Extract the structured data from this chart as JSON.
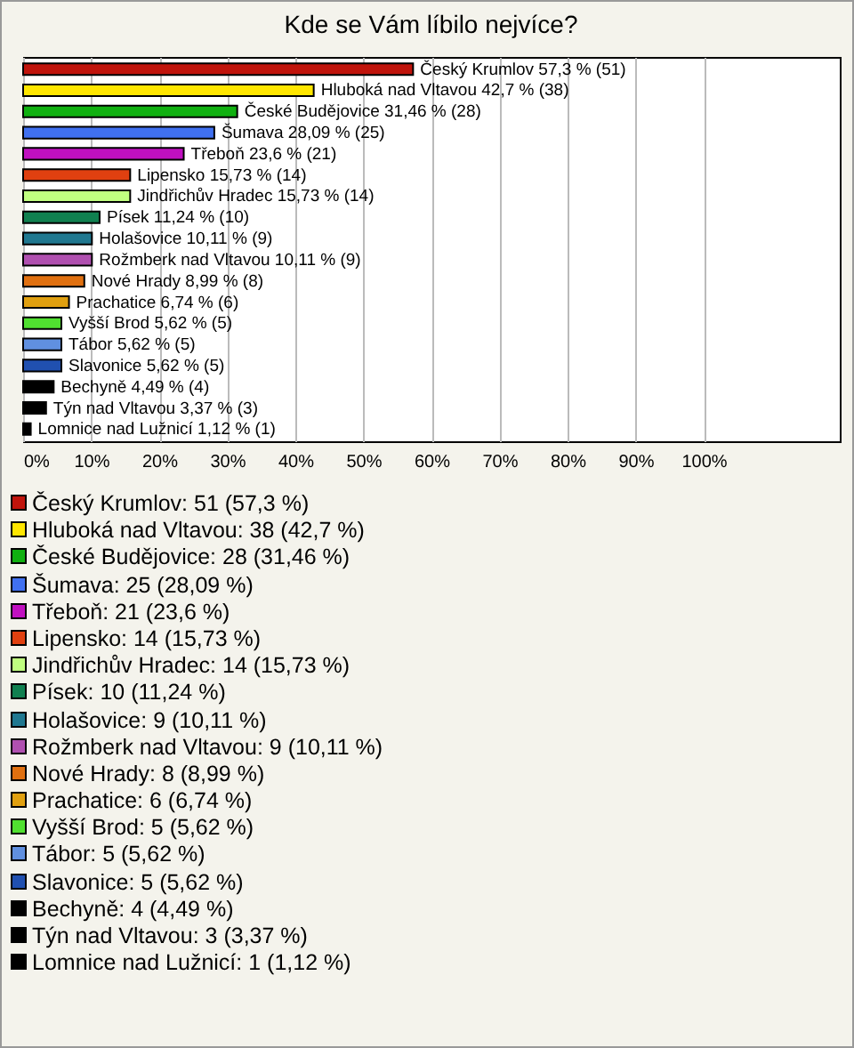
{
  "chart_data": {
    "type": "bar",
    "orientation": "horizontal",
    "title": "Kde se Vám líbilo nejvíce?",
    "categories": [
      "Český Krumlov",
      "Hluboká nad Vltavou",
      "České Budějovice",
      "Šumava",
      "Třeboň",
      "Lipensko",
      "Jindřichův Hradec",
      "Písek",
      "Holašovice",
      "Rožmberk nad Vltavou",
      "Nové Hrady",
      "Prachatice",
      "Vyšší Brod",
      "Tábor",
      "Slavonice",
      "Bechyně",
      "Týn nad Vltavou",
      "Lomnice nad Lužnicí"
    ],
    "values": [
      57.3,
      42.7,
      31.46,
      28.09,
      23.6,
      15.73,
      15.73,
      11.24,
      10.11,
      10.11,
      8.99,
      6.74,
      5.62,
      5.62,
      5.62,
      4.49,
      3.37,
      1.12
    ],
    "colors": [
      "#c0140c",
      "#ffe600",
      "#10b010",
      "#4070f0",
      "#c010c0",
      "#e04010",
      "#c0ff80",
      "#108050",
      "#207890",
      "#b050b0",
      "#e07010",
      "#e0a010",
      "#50e030",
      "#6090e0",
      "#2050b0",
      "#000000",
      "#000000",
      "#000000"
    ],
    "value_labels": [
      "57,3 % (51)",
      "42,7 % (38)",
      "31,46 % (28)",
      "28,09 % (25)",
      "23,6 % (21)",
      "15,73 % (14)",
      "15,73 % (14)",
      "11,24 % (10)",
      "10,11 % (9)",
      "10,11 % (9)",
      "8,99 % (8)",
      "6,74 % (6)",
      "5,62 % (5)",
      "5,62 % (5)",
      "5,62 % (5)",
      "4,49 % (4)",
      "3,37 % (3)",
      "1,12 % (1)"
    ],
    "annotations": [
      "Český Krumlov: 51 (57,3 %)",
      "Hluboká nad Vltavou: 38 (42,7 %)",
      "České Budějovice: 28 (31,46 %)",
      "Šumava: 25 (28,09 %)",
      "Třeboň: 21 (23,6 %)",
      "Lipensko: 14 (15,73 %)",
      "Jindřichův Hradec: 14 (15,73 %)",
      "Písek: 10 (11,24 %)",
      "Holašovice: 9 (10,11 %)",
      "Rožmberk nad Vltavou: 9 (10,11 %)",
      "Nové Hrady: 8 (8,99 %)",
      "Prachatice: 6 (6,74 %)",
      "Vyšší Brod: 5 (5,62 %)",
      "Tábor: 5 (5,62 %)",
      "Slavonice: 5 (5,62 %)",
      "Bechyně: 4 (4,49 %)",
      "Týn nad Vltavou: 3 (3,37 %)",
      "Lomnice nad Lužnicí: 1 (1,12 %)"
    ],
    "xlim": [
      0,
      120
    ],
    "xticks": [
      {
        "value": 0,
        "label": "0%"
      },
      {
        "value": 10,
        "label": "10%"
      },
      {
        "value": 20,
        "label": "20%"
      },
      {
        "value": 30,
        "label": "30%"
      },
      {
        "value": 40,
        "label": "40%"
      },
      {
        "value": 50,
        "label": "50%"
      },
      {
        "value": 60,
        "label": "60%"
      },
      {
        "value": 70,
        "label": "70%"
      },
      {
        "value": 80,
        "label": "80%"
      },
      {
        "value": 90,
        "label": "90%"
      },
      {
        "value": 100,
        "label": "100%"
      }
    ],
    "grid": "x",
    "tick_labels": "x"
  }
}
